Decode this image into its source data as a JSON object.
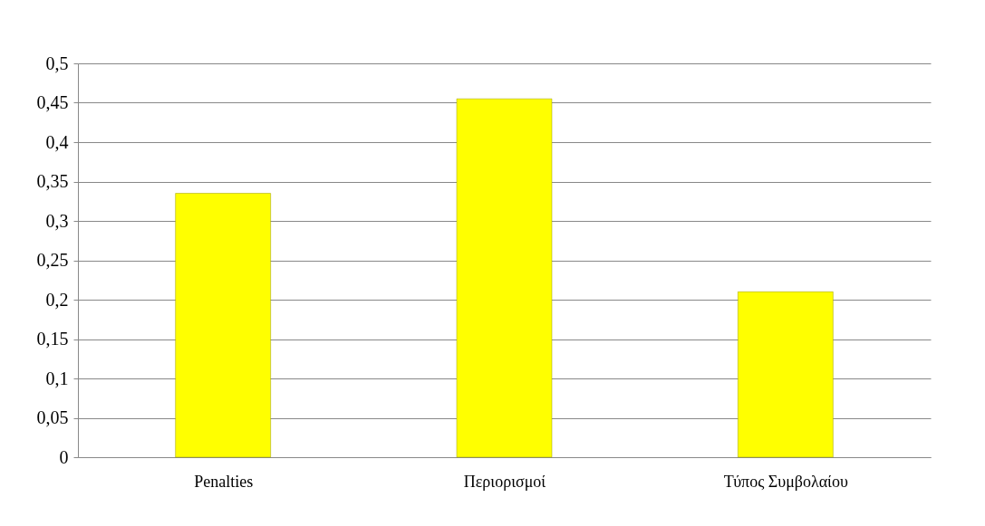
{
  "chart_data": {
    "type": "bar",
    "categories": [
      "Penalties",
      "Περιορισμοί",
      "Τύπος Συμβολαίου"
    ],
    "values": [
      0.335,
      0.455,
      0.21
    ],
    "color": "#ffff00",
    "ylim": [
      0,
      0.5
    ],
    "yticks": [
      0,
      {
        "value": 0.05,
        "label": "0,05"
      },
      {
        "value": 0.1,
        "label": "0,1"
      },
      {
        "value": 0.15,
        "label": "0,15"
      },
      {
        "value": 0.2,
        "label": "0,2"
      },
      {
        "value": 0.25,
        "label": "0,25"
      },
      {
        "value": 0.3,
        "label": "0,3"
      },
      {
        "value": 0.35,
        "label": "0,35"
      },
      {
        "value": 0.4,
        "label": "0,4"
      },
      {
        "value": 0.45,
        "label": "0,45"
      },
      {
        "value": 0.5,
        "label": "0,5"
      }
    ],
    "grid": "y"
  }
}
